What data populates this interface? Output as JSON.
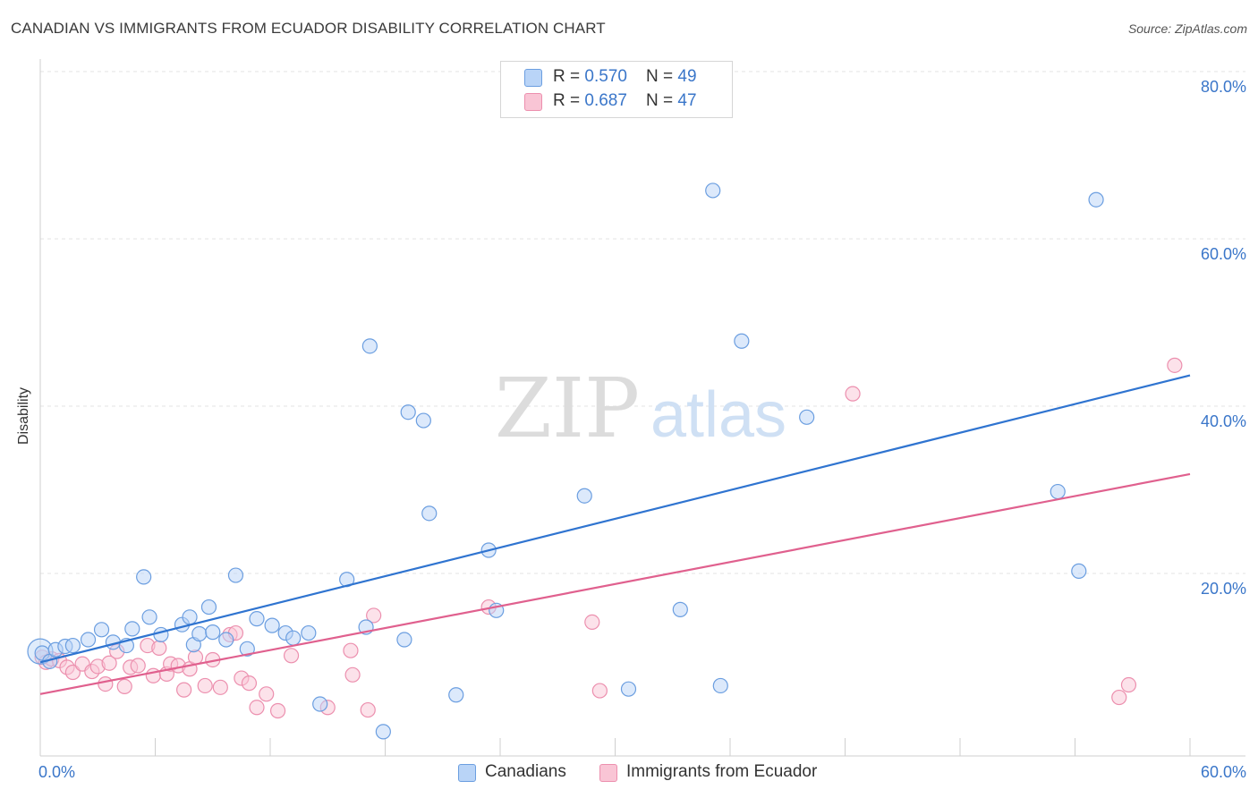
{
  "title": "CANADIAN VS IMMIGRANTS FROM ECUADOR DISABILITY CORRELATION CHART",
  "source": "Source: ZipAtlas.com",
  "watermark": {
    "zip": "ZIP",
    "atlas": "atlas"
  },
  "legend": {
    "rows": [
      {
        "r_label": "R = ",
        "r_value": "0.570",
        "n_label": "N = ",
        "n_value": "49",
        "color": "#b9d4f7"
      },
      {
        "r_label": "R = ",
        "r_value": "0.687",
        "n_label": "N = ",
        "n_value": "47",
        "color": "#f9c5d5"
      }
    ]
  },
  "bottom_legend": [
    {
      "label": "Canadians",
      "color": "#b9d4f7"
    },
    {
      "label": "Immigrants from Ecuador",
      "color": "#f9c5d5"
    }
  ],
  "colors": {
    "blue_line": "#2f74d0",
    "pink_line": "#e0608e",
    "blue_fill": "#b9d4f7",
    "blue_stroke": "#6b9ee0",
    "pink_fill": "#f9c5d5",
    "pink_stroke": "#ec8fae",
    "tick_text": "#3a76c9"
  },
  "chart_data": {
    "type": "scatter",
    "title": "CANADIAN VS IMMIGRANTS FROM ECUADOR DISABILITY CORRELATION CHART",
    "xlabel": "",
    "ylabel": "Disability",
    "xlim": [
      0,
      60
    ],
    "ylim": [
      0,
      80
    ],
    "x_tick_labels": [
      "0.0%",
      "60.0%"
    ],
    "y_tick_values": [
      20,
      40,
      60,
      80
    ],
    "y_tick_labels": [
      "20.0%",
      "40.0%",
      "60.0%",
      "80.0%"
    ],
    "grid": true,
    "legend_position": "top-center",
    "series": [
      {
        "name": "Canadians",
        "r": 0.57,
        "n": 49,
        "trend": {
          "x": [
            0,
            60
          ],
          "y": [
            11.2,
            45.5
          ]
        },
        "points": [
          [
            0.1,
            12.3
          ],
          [
            0.5,
            11.3
          ],
          [
            0.8,
            12.7
          ],
          [
            1.3,
            13.1
          ],
          [
            1.7,
            13.2
          ],
          [
            2.5,
            13.9
          ],
          [
            3.2,
            15.1
          ],
          [
            3.8,
            13.6
          ],
          [
            4.5,
            13.2
          ],
          [
            4.8,
            15.2
          ],
          [
            5.4,
            21.4
          ],
          [
            5.7,
            16.6
          ],
          [
            6.3,
            14.5
          ],
          [
            7.4,
            15.7
          ],
          [
            7.8,
            16.6
          ],
          [
            8.0,
            13.3
          ],
          [
            8.3,
            14.6
          ],
          [
            8.8,
            17.8
          ],
          [
            9.0,
            14.8
          ],
          [
            9.7,
            13.9
          ],
          [
            10.2,
            21.6
          ],
          [
            10.8,
            12.8
          ],
          [
            11.3,
            16.4
          ],
          [
            12.1,
            15.6
          ],
          [
            12.8,
            14.7
          ],
          [
            13.2,
            14.1
          ],
          [
            14.0,
            14.7
          ],
          [
            14.6,
            6.2
          ],
          [
            16.0,
            21.1
          ],
          [
            17.0,
            15.4
          ],
          [
            17.2,
            49.0
          ],
          [
            17.9,
            2.9
          ],
          [
            19.0,
            13.9
          ],
          [
            19.2,
            41.1
          ],
          [
            20.0,
            40.1
          ],
          [
            20.3,
            29.0
          ],
          [
            21.7,
            7.3
          ],
          [
            23.4,
            24.6
          ],
          [
            23.8,
            17.4
          ],
          [
            28.4,
            31.1
          ],
          [
            30.7,
            8.0
          ],
          [
            33.4,
            17.5
          ],
          [
            35.1,
            67.6
          ],
          [
            35.5,
            8.4
          ],
          [
            36.6,
            49.6
          ],
          [
            40.0,
            40.5
          ],
          [
            53.1,
            31.6
          ],
          [
            54.2,
            22.1
          ],
          [
            55.1,
            66.5
          ]
        ]
      },
      {
        "name": "Immigrants from Ecuador",
        "r": 0.687,
        "n": 47,
        "trend": {
          "x": [
            0,
            60
          ],
          "y": [
            7.4,
            33.7
          ]
        },
        "points": [
          [
            0.1,
            11.8
          ],
          [
            0.3,
            11.2
          ],
          [
            0.6,
            11.6
          ],
          [
            1.0,
            11.4
          ],
          [
            1.4,
            10.6
          ],
          [
            1.7,
            10.0
          ],
          [
            2.2,
            11.0
          ],
          [
            2.7,
            10.1
          ],
          [
            3.0,
            10.7
          ],
          [
            3.4,
            8.6
          ],
          [
            3.6,
            11.1
          ],
          [
            4.0,
            12.5
          ],
          [
            4.4,
            8.3
          ],
          [
            4.7,
            10.6
          ],
          [
            5.1,
            10.8
          ],
          [
            5.6,
            13.2
          ],
          [
            5.9,
            9.6
          ],
          [
            6.2,
            12.9
          ],
          [
            6.6,
            9.8
          ],
          [
            6.8,
            11.0
          ],
          [
            7.2,
            10.8
          ],
          [
            7.5,
            7.9
          ],
          [
            7.8,
            10.4
          ],
          [
            8.1,
            11.8
          ],
          [
            8.6,
            8.4
          ],
          [
            9.0,
            11.5
          ],
          [
            9.4,
            8.2
          ],
          [
            9.9,
            14.5
          ],
          [
            10.2,
            14.7
          ],
          [
            10.5,
            9.3
          ],
          [
            10.9,
            8.7
          ],
          [
            11.3,
            5.8
          ],
          [
            11.8,
            7.4
          ],
          [
            12.4,
            5.4
          ],
          [
            13.1,
            12.0
          ],
          [
            15.0,
            5.8
          ],
          [
            16.2,
            12.6
          ],
          [
            16.3,
            9.7
          ],
          [
            17.1,
            5.5
          ],
          [
            17.4,
            16.8
          ],
          [
            23.4,
            17.8
          ],
          [
            28.8,
            16.0
          ],
          [
            29.2,
            7.8
          ],
          [
            42.4,
            43.3
          ],
          [
            56.3,
            7.0
          ],
          [
            56.8,
            8.5
          ],
          [
            59.2,
            46.7
          ]
        ]
      }
    ]
  }
}
